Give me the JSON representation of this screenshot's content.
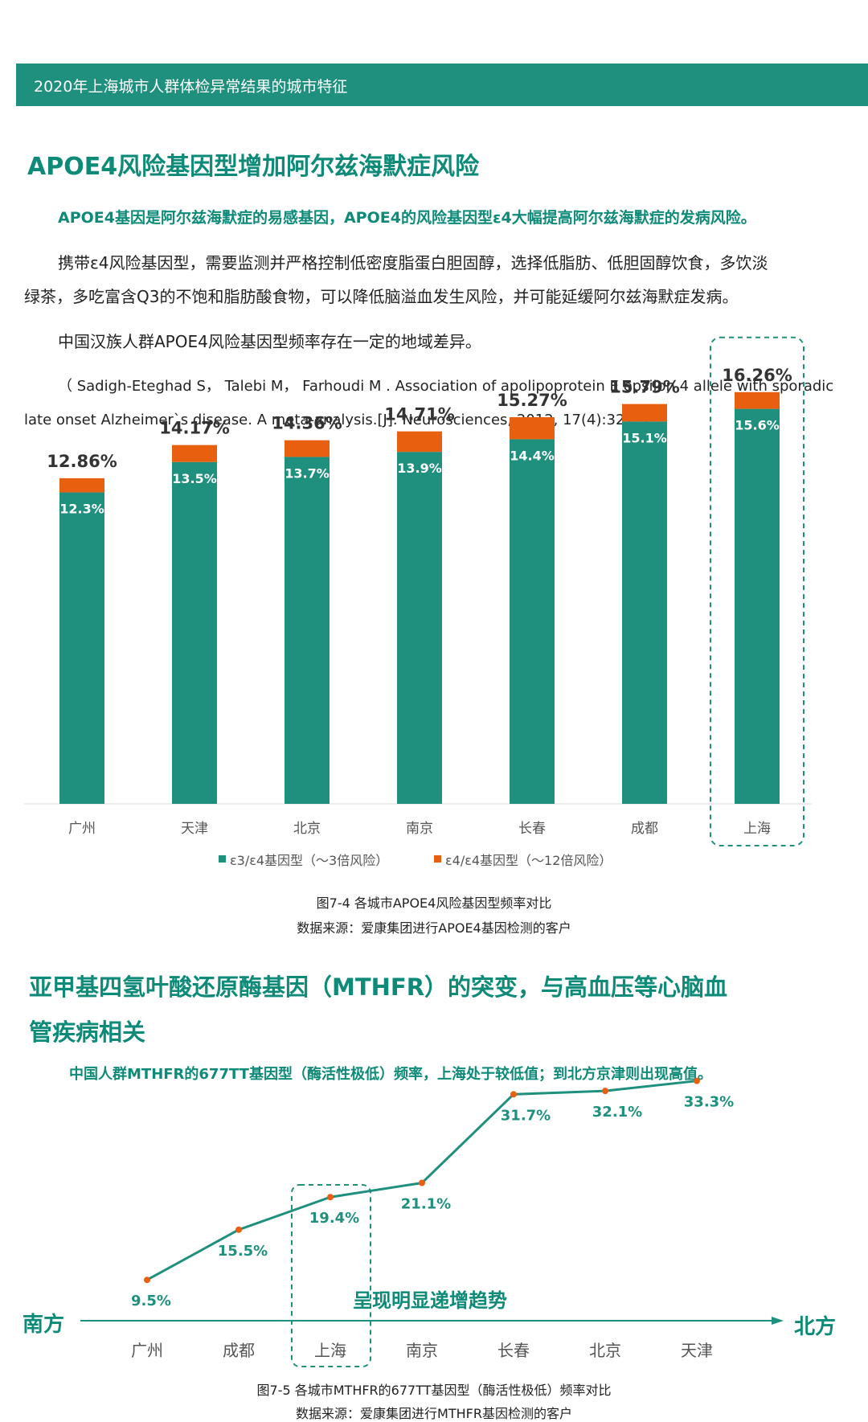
{
  "header": {
    "title": "2020年上海城市人群体检异常结果的城市特征"
  },
  "section1": {
    "heading": "APOE4风险基因型增加阿尔兹海默症风险",
    "lead": "APOE4基因是阿尔兹海默症的易感基因，APOE4的风险基因型ε4大幅提高阿尔兹海默症的发病风险。",
    "para1_line1": "携带ε4风险基因型，需要监测并严格控制低密度脂蛋白胆固醇，选择低脂肪、低胆固醇饮食，多饮淡",
    "para1_line2": "绿茶，多吃富含Q3的不饱和脂肪酸食物，可以降低脑溢血发生风险，并可能延缓阿尔兹海默症发病。",
    "para2": "中国汉族人群APOE4风险基因型频率存在一定的地域差异。",
    "ref_line1": "（ Sadigh-Eteghad S， Talebi M， Farhoudi M . Association of apolipoprotein E epsilon 4 allele with sporadic",
    "ref_line2": "late onset Alzheimer`s disease. A meta-analysis.[J]. Neurosciences, 2012, 17(4):321. ）",
    "figure_caption": "图7-4 各城市APOE4风险基因型频率对比",
    "figure_source": "数据来源：爱康集团进行APOE4基因检测的客户"
  },
  "section2": {
    "heading_line1": "亚甲基四氢叶酸还原酶基因（MTHFR）的突变，与高血压等心脑血",
    "heading_line2": "管疾病相关",
    "lead": "中国人群MTHFR的677TT基因型（酶活性极低）频率，上海处于较低值；到北方京津则出现高值。",
    "figure_caption": "图7-5 各城市MTHFR的677TT基因型（酶活性极低）频率对比",
    "figure_source": "数据来源：爱康集团进行MTHFR基因检测的客户"
  },
  "chart_data": [
    {
      "type": "bar",
      "stacked": true,
      "categories": [
        "广州",
        "天津",
        "北京",
        "南京",
        "长春",
        "成都",
        "上海"
      ],
      "series": [
        {
          "name": "ε3/ε4基因型（～3倍风险）",
          "color": "#1f8f7e",
          "values": [
            12.3,
            13.5,
            13.7,
            13.9,
            14.4,
            15.1,
            15.6
          ],
          "labels": [
            "12.3%",
            "13.5%",
            "13.7%",
            "13.9%",
            "14.4%",
            "15.1%",
            "15.6%"
          ]
        },
        {
          "name": "ε4/ε4基因型（～12倍风险）",
          "color": "#e8600f",
          "values": [
            0.56,
            0.67,
            0.66,
            0.81,
            0.87,
            0.69,
            0.66
          ]
        }
      ],
      "totals": [
        12.86,
        14.17,
        14.36,
        14.71,
        15.27,
        15.79,
        16.26
      ],
      "total_labels": [
        "12.86%",
        "14.17%",
        "14.36%",
        "14.71%",
        "15.27%",
        "15.79%",
        "16.26%"
      ],
      "highlight": "上海",
      "legend_position": "bottom",
      "grid": false
    },
    {
      "type": "line",
      "categories": [
        "广州",
        "成都",
        "上海",
        "南京",
        "长春",
        "北京",
        "天津"
      ],
      "values": [
        9.5,
        15.5,
        19.4,
        21.1,
        31.7,
        32.1,
        33.3
      ],
      "labels": [
        "9.5%",
        "15.5%",
        "19.4%",
        "21.1%",
        "31.7%",
        "32.1%",
        "33.3%"
      ],
      "line_color": "#1f8f7e",
      "point_color": "#e8600f",
      "highlight": "上海",
      "axis_left_label": "南方",
      "axis_right_label": "北方",
      "annotation": "呈现明显递增趋势",
      "grid": false
    }
  ]
}
